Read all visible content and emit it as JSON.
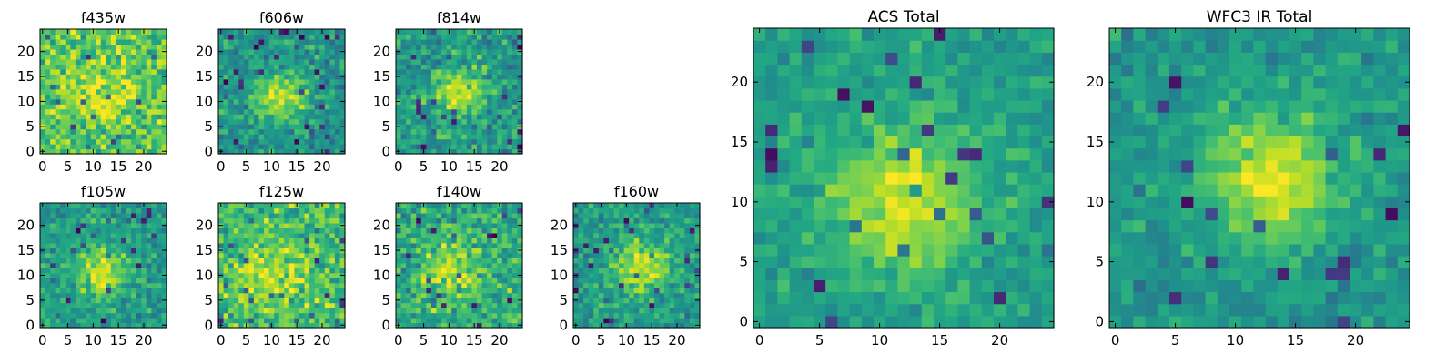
{
  "chart_data": [
    {
      "type": "heatmap",
      "title": "f435w",
      "size": 25,
      "xticks": [
        0,
        5,
        10,
        15,
        20
      ],
      "yticks": [
        0,
        5,
        10,
        15,
        20
      ],
      "xlim": [
        0,
        24
      ],
      "ylim": [
        0,
        24
      ],
      "colormap": "viridis",
      "source_center": [
        12,
        11
      ],
      "source_sigma": 4.5,
      "source_peak": 0.18,
      "base_level": 0.74,
      "noise_level": 0.16,
      "seed": 11
    },
    {
      "type": "heatmap",
      "title": "f606w",
      "size": 25,
      "xticks": [
        0,
        5,
        10,
        15,
        20
      ],
      "yticks": [
        0,
        5,
        10,
        15,
        20
      ],
      "xlim": [
        0,
        24
      ],
      "ylim": [
        0,
        24
      ],
      "colormap": "viridis",
      "source_center": [
        12,
        11
      ],
      "source_sigma": 3.6,
      "source_peak": 0.4,
      "base_level": 0.52,
      "noise_level": 0.13,
      "seed": 23
    },
    {
      "type": "heatmap",
      "title": "f814w",
      "size": 25,
      "xticks": [
        0,
        5,
        10,
        15,
        20
      ],
      "yticks": [
        0,
        5,
        10,
        15,
        20
      ],
      "xlim": [
        0,
        24
      ],
      "ylim": [
        0,
        24
      ],
      "colormap": "viridis",
      "source_center": [
        12,
        12
      ],
      "source_sigma": 3.4,
      "source_peak": 0.35,
      "base_level": 0.55,
      "noise_level": 0.15,
      "seed": 37
    },
    {
      "type": "heatmap",
      "title": "f105w",
      "size": 25,
      "xticks": [
        0,
        5,
        10,
        15,
        20
      ],
      "yticks": [
        0,
        5,
        10,
        15,
        20
      ],
      "xlim": [
        0,
        24
      ],
      "ylim": [
        0,
        24
      ],
      "colormap": "viridis",
      "source_center": [
        12,
        11
      ],
      "source_sigma": 3.5,
      "source_peak": 0.38,
      "base_level": 0.55,
      "noise_level": 0.13,
      "seed": 41
    },
    {
      "type": "heatmap",
      "title": "f125w",
      "size": 25,
      "xticks": [
        0,
        5,
        10,
        15,
        20
      ],
      "yticks": [
        0,
        5,
        10,
        15,
        20
      ],
      "xlim": [
        0,
        24
      ],
      "ylim": [
        0,
        24
      ],
      "colormap": "viridis",
      "source_center": [
        10,
        10
      ],
      "source_sigma": 5.5,
      "source_peak": 0.18,
      "base_level": 0.68,
      "noise_level": 0.16,
      "seed": 53
    },
    {
      "type": "heatmap",
      "title": "f140w",
      "size": 25,
      "xticks": [
        0,
        5,
        10,
        15,
        20
      ],
      "yticks": [
        0,
        5,
        10,
        15,
        20
      ],
      "xlim": [
        0,
        24
      ],
      "ylim": [
        0,
        24
      ],
      "colormap": "viridis",
      "source_center": [
        11,
        11
      ],
      "source_sigma": 4.5,
      "source_peak": 0.26,
      "base_level": 0.6,
      "noise_level": 0.16,
      "seed": 67
    },
    {
      "type": "heatmap",
      "title": "f160w",
      "size": 25,
      "xticks": [
        0,
        5,
        10,
        15,
        20
      ],
      "yticks": [
        0,
        5,
        10,
        15,
        20
      ],
      "xlim": [
        0,
        24
      ],
      "ylim": [
        0,
        24
      ],
      "colormap": "viridis",
      "source_center": [
        13,
        12
      ],
      "source_sigma": 3.5,
      "source_peak": 0.4,
      "base_level": 0.55,
      "noise_level": 0.13,
      "seed": 79
    },
    {
      "type": "heatmap",
      "title": "ACS Total",
      "size": 25,
      "xticks": [
        0,
        5,
        10,
        15,
        20
      ],
      "yticks": [
        0,
        5,
        10,
        15,
        20
      ],
      "xlim": [
        0,
        24
      ],
      "ylim": [
        0,
        24
      ],
      "colormap": "viridis",
      "source_center": [
        12,
        10
      ],
      "source_sigma": 4.2,
      "source_peak": 0.4,
      "base_level": 0.56,
      "noise_level": 0.09,
      "seed": 97
    },
    {
      "type": "heatmap",
      "title": "WFC3 IR Total",
      "size": 25,
      "xticks": [
        0,
        5,
        10,
        15,
        20
      ],
      "yticks": [
        0,
        5,
        10,
        15,
        20
      ],
      "xlim": [
        0,
        24
      ],
      "ylim": [
        0,
        24
      ],
      "colormap": "viridis",
      "source_center": [
        13,
        12
      ],
      "source_sigma": 4.0,
      "source_peak": 0.42,
      "base_level": 0.52,
      "noise_level": 0.09,
      "seed": 113
    }
  ]
}
